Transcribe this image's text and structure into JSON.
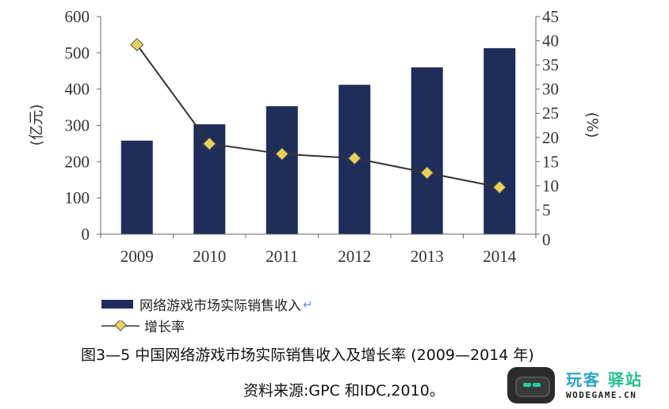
{
  "chart_data": {
    "type": "bar+line",
    "categories": [
      "2009",
      "2010",
      "2011",
      "2012",
      "2013",
      "2014"
    ],
    "series": [
      {
        "name": "网络游戏市场实际销售收入",
        "type": "bar",
        "axis": "left",
        "values": [
          258,
          303,
          353,
          412,
          460,
          513
        ]
      },
      {
        "name": "增长率",
        "type": "line",
        "axis": "right",
        "values": [
          39.2,
          18.7,
          16.6,
          15.7,
          12.7,
          9.7
        ]
      }
    ],
    "y_left": {
      "label": "(亿元)",
      "ylim": [
        0,
        600
      ],
      "ticks": [
        "0",
        "100",
        "200",
        "300",
        "400",
        "500",
        "600"
      ]
    },
    "y_right": {
      "label": "(%)",
      "ylim": [
        0,
        45
      ],
      "ticks": [
        "0",
        "5",
        "10",
        "15",
        "20",
        "25",
        "30",
        "35",
        "40",
        "45"
      ]
    },
    "colors": {
      "bar": "#1f2d5a",
      "line": "#333333",
      "marker": "#e8d25a"
    },
    "grid": false,
    "legend_position": "bottom-left"
  },
  "legend": {
    "bar_label": "网络游戏市场实际销售收入",
    "line_label": "增长率"
  },
  "caption": "图3—5   中国网络游戏市场实际销售收入及增长率 (2009—2014 年)",
  "source": "资料来源:GPC 和IDC,2010。",
  "watermark": {
    "title_part1": "玩客",
    "title_part2": "驿站",
    "subtitle": "WODEGAME.CN"
  }
}
